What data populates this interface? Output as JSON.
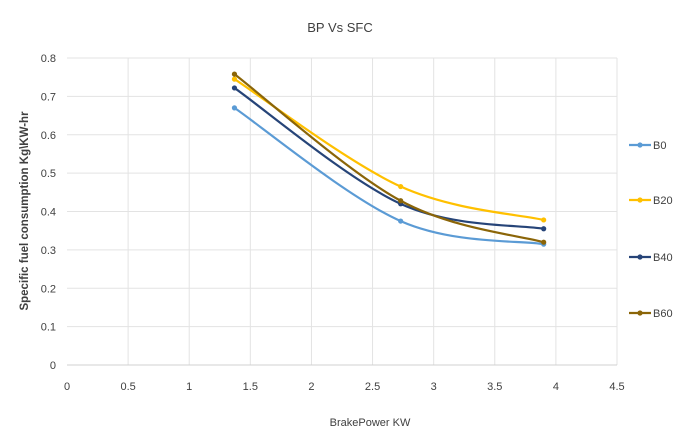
{
  "chart_data": {
    "type": "line",
    "title": "BP Vs SFC",
    "xlabel": "BrakePower KW",
    "ylabel": "Specific fuel consumption  Kg\\KW-hr",
    "xlim": [
      0,
      4.5
    ],
    "ylim": [
      0,
      0.8
    ],
    "x_ticks": [
      "0",
      "0.5",
      "1",
      "1.5",
      "2",
      "2.5",
      "3",
      "3.5",
      "4",
      "4.5"
    ],
    "y_ticks": [
      "0",
      "0.1",
      "0.2",
      "0.3",
      "0.4",
      "0.5",
      "0.6",
      "0.7",
      "0.8"
    ],
    "grid": true,
    "smooth": true,
    "legend_position": "right",
    "x": [
      1.37,
      2.73,
      3.9
    ],
    "series": [
      {
        "name": "B0",
        "color": "#5b9bd5",
        "values": [
          0.67,
          0.375,
          0.315
        ]
      },
      {
        "name": "B20",
        "color": "#ffc000",
        "values": [
          0.745,
          0.465,
          0.378
        ]
      },
      {
        "name": "B40",
        "color": "#264478",
        "values": [
          0.722,
          0.42,
          0.355
        ]
      },
      {
        "name": "B60",
        "color": "#8b6508",
        "values": [
          0.758,
          0.428,
          0.32
        ]
      }
    ]
  }
}
